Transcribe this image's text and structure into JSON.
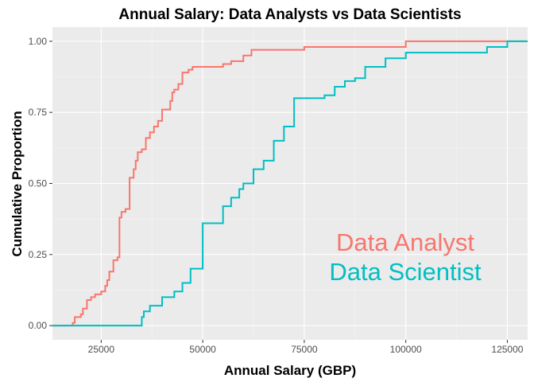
{
  "chart_data": {
    "type": "line",
    "subtype": "ecdf-step",
    "title": "Annual Salary: Data Analysts vs Data Scientists",
    "xlabel": "Annual Salary (GBP)",
    "ylabel": "Cumulative Proportion",
    "xlim": [
      13000,
      130000
    ],
    "ylim": [
      -0.05,
      1.05
    ],
    "x_ticks": [
      25000,
      50000,
      75000,
      100000,
      125000
    ],
    "x_tick_labels": [
      "25000",
      "50000",
      "75000",
      "100000",
      "125000"
    ],
    "y_ticks": [
      0,
      0.25,
      0.5,
      0.75,
      1.0
    ],
    "y_tick_labels": [
      "0.00",
      "0.25",
      "0.50",
      "0.75",
      "1.00"
    ],
    "grid": true,
    "legend_position": "bottom-right (inside)",
    "series": [
      {
        "name": "Data Analyst",
        "color": "#f8766d",
        "steps": [
          [
            18000,
            0.01
          ],
          [
            18500,
            0.03
          ],
          [
            20000,
            0.04
          ],
          [
            20500,
            0.06
          ],
          [
            21500,
            0.09
          ],
          [
            22500,
            0.1
          ],
          [
            23500,
            0.11
          ],
          [
            25000,
            0.12
          ],
          [
            26000,
            0.14
          ],
          [
            26500,
            0.16
          ],
          [
            27000,
            0.19
          ],
          [
            28000,
            0.23
          ],
          [
            29000,
            0.24
          ],
          [
            29500,
            0.38
          ],
          [
            30000,
            0.4
          ],
          [
            31000,
            0.41
          ],
          [
            32000,
            0.52
          ],
          [
            33000,
            0.55
          ],
          [
            33500,
            0.58
          ],
          [
            34000,
            0.61
          ],
          [
            35000,
            0.62
          ],
          [
            36000,
            0.66
          ],
          [
            37000,
            0.68
          ],
          [
            38000,
            0.7
          ],
          [
            39000,
            0.72
          ],
          [
            40000,
            0.76
          ],
          [
            42000,
            0.79
          ],
          [
            42500,
            0.82
          ],
          [
            43000,
            0.83
          ],
          [
            44000,
            0.85
          ],
          [
            45000,
            0.89
          ],
          [
            46500,
            0.9
          ],
          [
            47500,
            0.91
          ],
          [
            55000,
            0.92
          ],
          [
            57000,
            0.93
          ],
          [
            60000,
            0.95
          ],
          [
            62000,
            0.97
          ],
          [
            75000,
            0.98
          ],
          [
            100000,
            1.0
          ]
        ],
        "x_end": 130000
      },
      {
        "name": "Data Scientist",
        "color": "#00bfc4",
        "steps": [
          [
            35000,
            0.03
          ],
          [
            35500,
            0.05
          ],
          [
            37000,
            0.07
          ],
          [
            40000,
            0.1
          ],
          [
            43000,
            0.12
          ],
          [
            45000,
            0.15
          ],
          [
            47000,
            0.2
          ],
          [
            50000,
            0.36
          ],
          [
            55000,
            0.42
          ],
          [
            57000,
            0.45
          ],
          [
            59000,
            0.48
          ],
          [
            60000,
            0.5
          ],
          [
            62500,
            0.55
          ],
          [
            65000,
            0.58
          ],
          [
            67500,
            0.65
          ],
          [
            70000,
            0.7
          ],
          [
            72500,
            0.8
          ],
          [
            80000,
            0.81
          ],
          [
            82500,
            0.84
          ],
          [
            85000,
            0.86
          ],
          [
            87500,
            0.87
          ],
          [
            90000,
            0.91
          ],
          [
            95000,
            0.94
          ],
          [
            100000,
            0.96
          ],
          [
            120000,
            0.98
          ],
          [
            125000,
            1.0
          ]
        ],
        "x_end": 130000
      }
    ]
  }
}
